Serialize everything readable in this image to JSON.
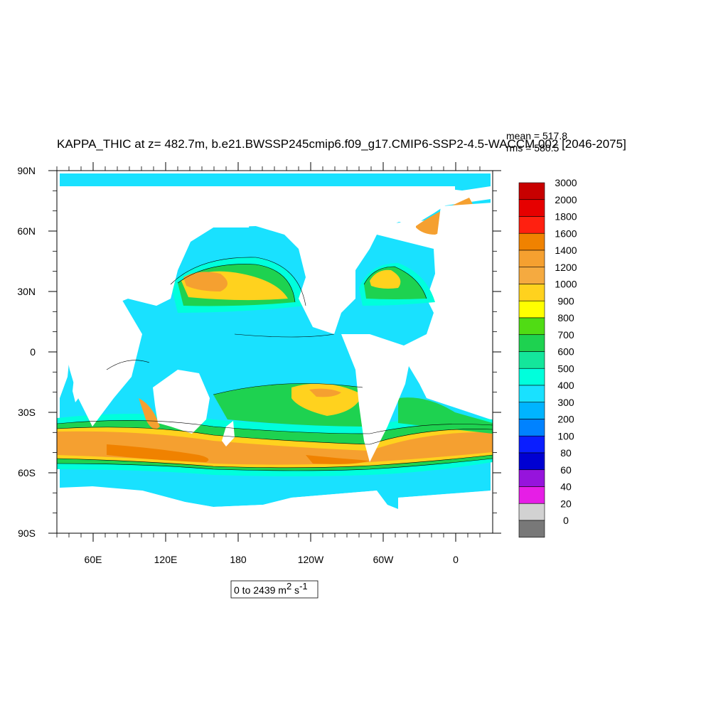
{
  "figure": {
    "title": "KAPPA_THIC at z= 482.7m, b.e21.BWSSP245cmip6.f09_g17.CMIP6-SSP2-4.5-WACCM.002 [2046-2075]",
    "mean_label": "mean = 517.8",
    "rms_label": "rms = 580.5",
    "range_label": {
      "prefix": "0 to 2439 m",
      "exp1": "2",
      "mid": " s",
      "exp2": "-1"
    }
  },
  "axes": {
    "lat_labels": [
      "90N",
      "60N",
      "30N",
      "0",
      "30S",
      "60S",
      "90S"
    ],
    "lon_labels": [
      "60E",
      "120E",
      "180",
      "120W",
      "60W",
      "0"
    ]
  },
  "colorbar": {
    "labels": [
      "3000",
      "2000",
      "1800",
      "1600",
      "1400",
      "1200",
      "1000",
      "900",
      "800",
      "700",
      "600",
      "500",
      "400",
      "300",
      "200",
      "100",
      "80",
      "60",
      "40",
      "20",
      "0"
    ],
    "colors": [
      "#c80000",
      "#e60000",
      "#ff2010",
      "#f08200",
      "#f5a030",
      "#f5aa40",
      "#ffd21e",
      "#ffff00",
      "#50dc14",
      "#1ed250",
      "#14e69b",
      "#00ffdc",
      "#19e1ff",
      "#00b4ff",
      "#0082ff",
      "#0a1eff",
      "#0000d2",
      "#9614dc",
      "#e61ee6",
      "#d2d2d2",
      "#787878"
    ]
  },
  "colors": {
    "ocean_base": "#19e1ff",
    "land": "#ffffff"
  }
}
